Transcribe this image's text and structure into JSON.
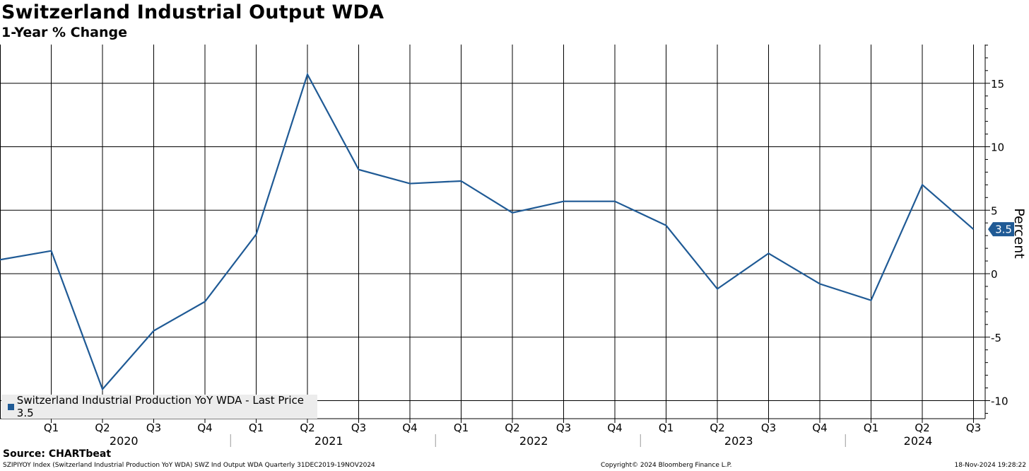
{
  "header": {
    "title": "Switzerland Industrial Output WDA",
    "subtitle": "1-Year % Change"
  },
  "legend": {
    "label": "Switzerland Industrial Production YoY WDA - Last Price 3.5"
  },
  "source": "Source: CHARTbeat",
  "footer": {
    "left": "SZIPIYOY Index (Switzerland Industrial Production YoY WDA) SWZ Ind Output WDA  Quarterly 31DEC2019-19NOV2024",
    "center": "Copyright© 2024 Bloomberg Finance L.P.",
    "right": "18-Nov-2024 19:28:22"
  },
  "colors": {
    "series": "#1f5a95",
    "label_box": "#1f5a95",
    "legend_bg": "#ececec"
  },
  "chart_data": {
    "type": "line",
    "title": "Switzerland Industrial Output WDA",
    "subtitle": "1-Year % Change",
    "ylabel": "Percent",
    "ylim": [
      -11.5,
      18
    ],
    "yticks": [
      -10,
      -5,
      0,
      5,
      10,
      15
    ],
    "x": [
      "2019 Q4",
      "2020 Q1",
      "2020 Q2",
      "2020 Q3",
      "2020 Q4",
      "2021 Q1",
      "2021 Q2",
      "2021 Q3",
      "2021 Q4",
      "2022 Q1",
      "2022 Q2",
      "2022 Q3",
      "2022 Q4",
      "2023 Q1",
      "2023 Q2",
      "2023 Q3",
      "2023 Q4",
      "2024 Q1",
      "2024 Q2",
      "2024 Q3"
    ],
    "quarter_labels": [
      "Q1",
      "Q2",
      "Q3",
      "Q4",
      "Q1",
      "Q2",
      "Q3",
      "Q4",
      "Q1",
      "Q2",
      "Q3",
      "Q4",
      "Q1",
      "Q2",
      "Q3",
      "Q4",
      "Q1",
      "Q2",
      "Q3"
    ],
    "year_labels": [
      "2020",
      "2021",
      "2022",
      "2023",
      "2024"
    ],
    "series": [
      {
        "name": "Switzerland Industrial Production YoY WDA",
        "values": [
          1.1,
          1.8,
          -9.1,
          -4.5,
          -2.2,
          3.1,
          15.7,
          8.2,
          7.1,
          7.3,
          4.8,
          5.7,
          5.7,
          3.8,
          -1.2,
          1.6,
          -0.8,
          -2.1,
          7.0,
          3.5
        ]
      }
    ],
    "last_value_label": "3.5",
    "grid": true
  }
}
